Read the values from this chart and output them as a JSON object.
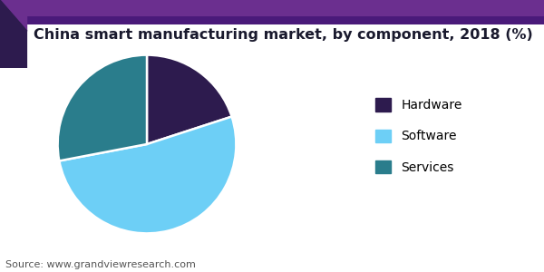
{
  "title": "China smart manufacturing market, by component, 2018 (%)",
  "slices": [
    {
      "label": "Hardware",
      "value": 20,
      "color": "#2d1b4e"
    },
    {
      "label": "Software",
      "value": 52,
      "color": "#6dcff6"
    },
    {
      "label": "Services",
      "value": 28,
      "color": "#2a7d8c"
    }
  ],
  "legend_labels": [
    "Hardware",
    "Software",
    "Services"
  ],
  "legend_colors": [
    "#2d1b4e",
    "#6dcff6",
    "#2a7d8c"
  ],
  "source_text": "Source: www.grandviewresearch.com",
  "title_fontsize": 11.5,
  "legend_fontsize": 10,
  "source_fontsize": 8,
  "background_color": "#ffffff",
  "header_bar_color": "#6b2f8f",
  "header_line_color": "#4a1a7a",
  "startangle": 90
}
